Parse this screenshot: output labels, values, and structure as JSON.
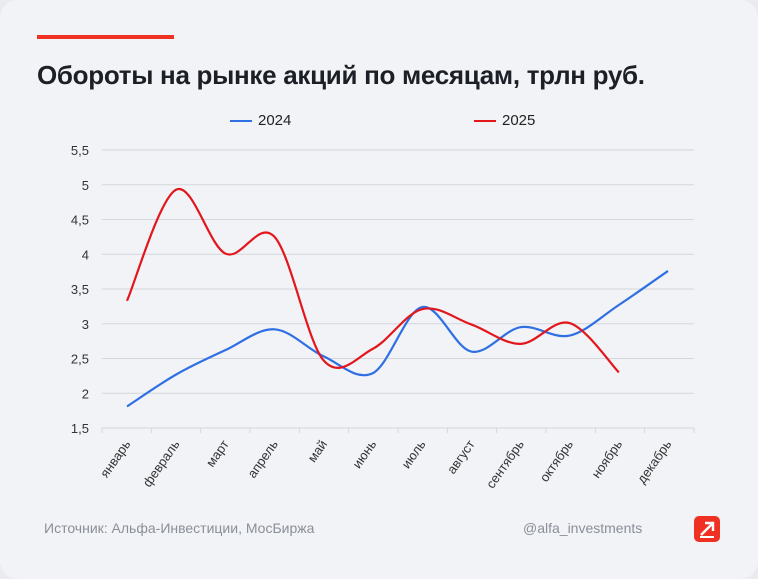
{
  "title": "Обороты на рынке акций по месяцам, трлн руб.",
  "source": "Источник: Альфа-Инвестиции, МосБиржа",
  "handle": "@alfa_investments",
  "chart_data": {
    "type": "line",
    "title": "Обороты на рынке акций по месяцам, трлн руб.",
    "categories": [
      "январь",
      "февраль",
      "март",
      "апрель",
      "май",
      "июнь",
      "июль",
      "август",
      "сентябрь",
      "октябрь",
      "ноябрь",
      "декабрь"
    ],
    "ylim": [
      1.5,
      5.5
    ],
    "yticks": [
      "1,5",
      "2",
      "2,5",
      "3",
      "3,5",
      "4",
      "4,5",
      "5",
      "5,5"
    ],
    "grid": true,
    "legend": "top",
    "series": [
      {
        "name": "2024",
        "color": "#2f6fe4",
        "values": [
          1.81,
          2.27,
          2.62,
          2.92,
          2.53,
          2.29,
          3.24,
          2.6,
          2.95,
          2.83,
          3.27,
          3.76
        ]
      },
      {
        "name": "2025",
        "color": "#e3161b",
        "values": [
          3.33,
          4.93,
          4.01,
          4.25,
          2.47,
          2.64,
          3.21,
          2.99,
          2.71,
          3.01,
          2.3,
          null
        ]
      }
    ]
  }
}
